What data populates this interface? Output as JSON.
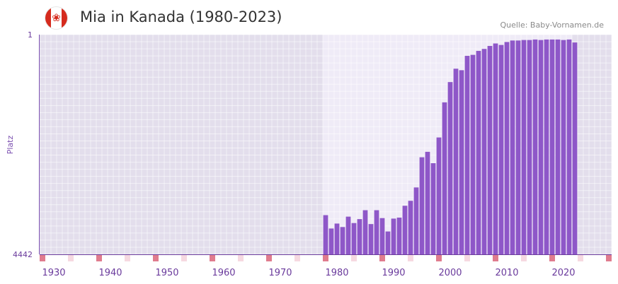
{
  "header": {
    "title": "Mia in Kanada (1980-2023)",
    "source": "Quelle: Baby-Vornamen.de",
    "flag_icon": "canada-flag-icon"
  },
  "chart_data": {
    "type": "bar",
    "title": "Mia in Kanada (1980-2023)",
    "xlabel": "",
    "ylabel": "Platz",
    "y_axis": "rank",
    "y_reversed": true,
    "ylim": [
      1,
      4442
    ],
    "ytick_labels": [
      "1",
      "4442"
    ],
    "xlim": [
      1928,
      2028
    ],
    "xtick_labels": [
      "1930",
      "1940",
      "1950",
      "1960",
      "1970",
      "1980",
      "1990",
      "2000",
      "2010",
      "2020"
    ],
    "grid": true,
    "bar_color": "#8e57c8",
    "x": [
      1978,
      1979,
      1980,
      1981,
      1982,
      1983,
      1984,
      1985,
      1986,
      1987,
      1988,
      1989,
      1990,
      1991,
      1992,
      1993,
      1994,
      1995,
      1996,
      1997,
      1998,
      1999,
      2000,
      2001,
      2002,
      2003,
      2004,
      2005,
      2006,
      2007,
      2008,
      2009,
      2010,
      2011,
      2012,
      2013,
      2014,
      2015,
      2016,
      2017,
      2018,
      2019,
      2020,
      2021,
      2022
    ],
    "values": [
      3650,
      3920,
      3820,
      3890,
      3680,
      3810,
      3730,
      3550,
      3830,
      3550,
      3710,
      3980,
      3720,
      3700,
      3460,
      3360,
      3090,
      2480,
      2370,
      2600,
      2080,
      1370,
      960,
      690,
      720,
      430,
      410,
      330,
      290,
      230,
      180,
      210,
      150,
      120,
      120,
      110,
      110,
      100,
      110,
      100,
      100,
      100,
      110,
      100,
      160
    ]
  }
}
